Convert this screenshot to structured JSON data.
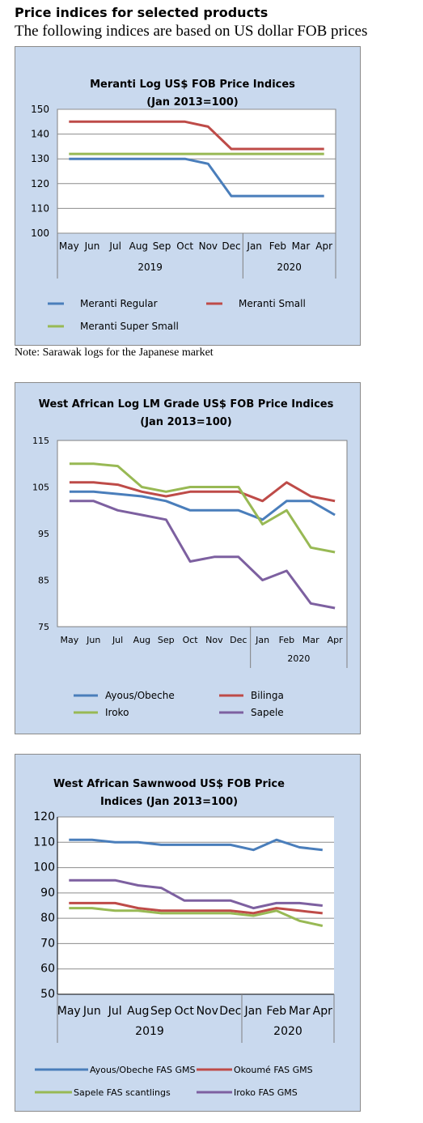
{
  "header": {
    "title": "Price indices for selected products",
    "subtitle": "The following indices are based on US dollar FOB prices"
  },
  "note": "Note: Sarawak logs for the Japanese market",
  "chart_data": [
    {
      "type": "line",
      "title_lines": [
        "Meranti Log US$ FOB Price Indices",
        "(Jan 2013=100)"
      ],
      "categories": [
        "May",
        "Jun",
        "Jul",
        "Aug",
        "Sep",
        "Oct",
        "Nov",
        "Dec",
        "Jan",
        "Feb",
        "Mar",
        "Apr"
      ],
      "year_groups": [
        {
          "label": "2019",
          "start": 0,
          "end": 7
        },
        {
          "label": "2020",
          "start": 8,
          "end": 11
        }
      ],
      "ylim": [
        100,
        150
      ],
      "yticks": [
        100,
        110,
        120,
        130,
        140,
        150
      ],
      "grid": true,
      "legend_position": "bottom",
      "series": [
        {
          "name": "Meranti Regular",
          "color": "#4a7ebb",
          "values": [
            130,
            130,
            130,
            130,
            130,
            130,
            128,
            115,
            115,
            115,
            115,
            115
          ]
        },
        {
          "name": "Meranti Small",
          "color": "#be4b48",
          "values": [
            145,
            145,
            145,
            145,
            145,
            145,
            143,
            134,
            134,
            134,
            134,
            134
          ]
        },
        {
          "name": "Meranti Super Small",
          "color": "#98b954",
          "values": [
            132,
            132,
            132,
            132,
            132,
            132,
            132,
            132,
            132,
            132,
            132,
            132
          ]
        }
      ]
    },
    {
      "type": "line",
      "title_lines": [
        "West African Log LM Grade US$ FOB Price Indices",
        "(Jan 2013=100)"
      ],
      "categories": [
        "May",
        "Jun",
        "Jul",
        "Aug",
        "Sep",
        "Oct",
        "Nov",
        "Dec",
        "Jan",
        "Feb",
        "Mar",
        "Apr"
      ],
      "year_groups": [
        {
          "label": "2020",
          "start": 8,
          "end": 11
        }
      ],
      "ylim": [
        75,
        115
      ],
      "yticks": [
        75,
        85,
        95,
        105,
        115
      ],
      "grid": false,
      "legend_position": "bottom",
      "series": [
        {
          "name": "Ayous/Obeche",
          "color": "#4a7ebb",
          "values": [
            104,
            104,
            103.5,
            103,
            102,
            100,
            100,
            100,
            98,
            102,
            102,
            99
          ]
        },
        {
          "name": "Bilinga",
          "color": "#be4b48",
          "values": [
            106,
            106,
            105.5,
            104,
            103,
            104,
            104,
            104,
            102,
            106,
            103,
            102
          ]
        },
        {
          "name": "Iroko",
          "color": "#98b954",
          "values": [
            110,
            110,
            109.5,
            105,
            104,
            105,
            105,
            105,
            97,
            100,
            92,
            91
          ]
        },
        {
          "name": "Sapele",
          "color": "#7d60a0",
          "values": [
            102,
            102,
            100,
            99,
            98,
            89,
            90,
            90,
            85,
            87,
            80,
            79
          ]
        }
      ]
    },
    {
      "type": "line",
      "title_lines": [
        "West African Sawnwood US$ FOB Price",
        "Indices (Jan 2013=100)"
      ],
      "categories": [
        "May",
        "Jun",
        "Jul",
        "Aug",
        "Sep",
        "Oct",
        "Nov",
        "Dec",
        "Jan",
        "Feb",
        "Mar",
        "Apr"
      ],
      "year_groups": [
        {
          "label": "2019",
          "start": 0,
          "end": 7
        },
        {
          "label": "2020",
          "start": 8,
          "end": 11
        }
      ],
      "ylim": [
        50,
        120
      ],
      "yticks": [
        50,
        60,
        70,
        80,
        90,
        100,
        110,
        120
      ],
      "grid": true,
      "legend_position": "bottom",
      "series": [
        {
          "name": "Ayous/Obeche FAS GMS",
          "color": "#4a7ebb",
          "values": [
            111,
            111,
            110,
            110,
            109,
            109,
            109,
            109,
            107,
            111,
            108,
            107
          ]
        },
        {
          "name": "Okoumé  FAS GMS",
          "color": "#be4b48",
          "values": [
            86,
            86,
            86,
            84,
            83,
            83,
            83,
            83,
            82,
            84,
            83,
            82
          ]
        },
        {
          "name": "Sapele FAS scantlings",
          "color": "#98b954",
          "values": [
            84,
            84,
            83,
            83,
            82,
            82,
            82,
            82,
            81,
            83,
            79,
            77
          ]
        },
        {
          "name": "Iroko FAS GMS",
          "color": "#7d60a0",
          "values": [
            95,
            95,
            95,
            93,
            92,
            87,
            87,
            87,
            84,
            86,
            86,
            85
          ]
        }
      ]
    }
  ]
}
